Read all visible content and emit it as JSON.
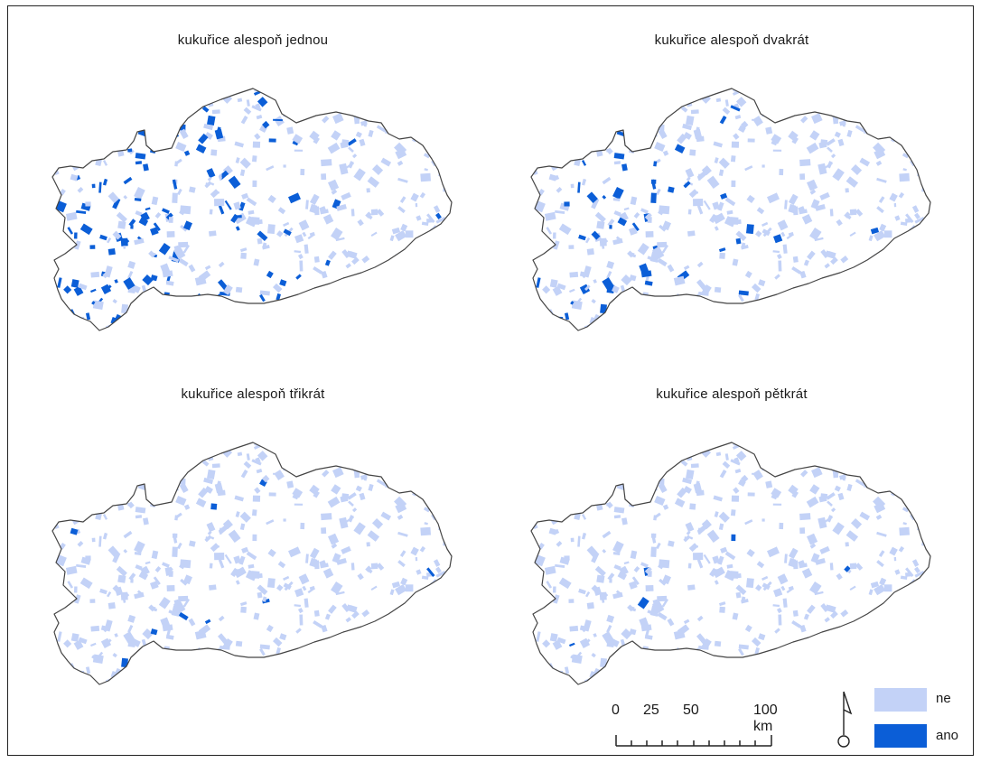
{
  "panels": [
    {
      "title": "kukuřice alespoň jednou",
      "ano_level": "high"
    },
    {
      "title": "kukuřice alespoň dvakrát",
      "ano_level": "medium"
    },
    {
      "title": "kukuřice alespoň třikrát",
      "ano_level": "low"
    },
    {
      "title": "kukuřice alespoň pětkrát",
      "ano_level": "minimal"
    }
  ],
  "scale": {
    "ticks": [
      "0",
      "25",
      "50",
      "100 km"
    ]
  },
  "legend": {
    "items": [
      {
        "label": "ne",
        "color": "#c3d2f7"
      },
      {
        "label": "ano",
        "color": "#0b5ed7"
      }
    ]
  },
  "colors": {
    "ne": "#c3d2f7",
    "ano": "#0b5ed7",
    "outline": "#444444"
  }
}
